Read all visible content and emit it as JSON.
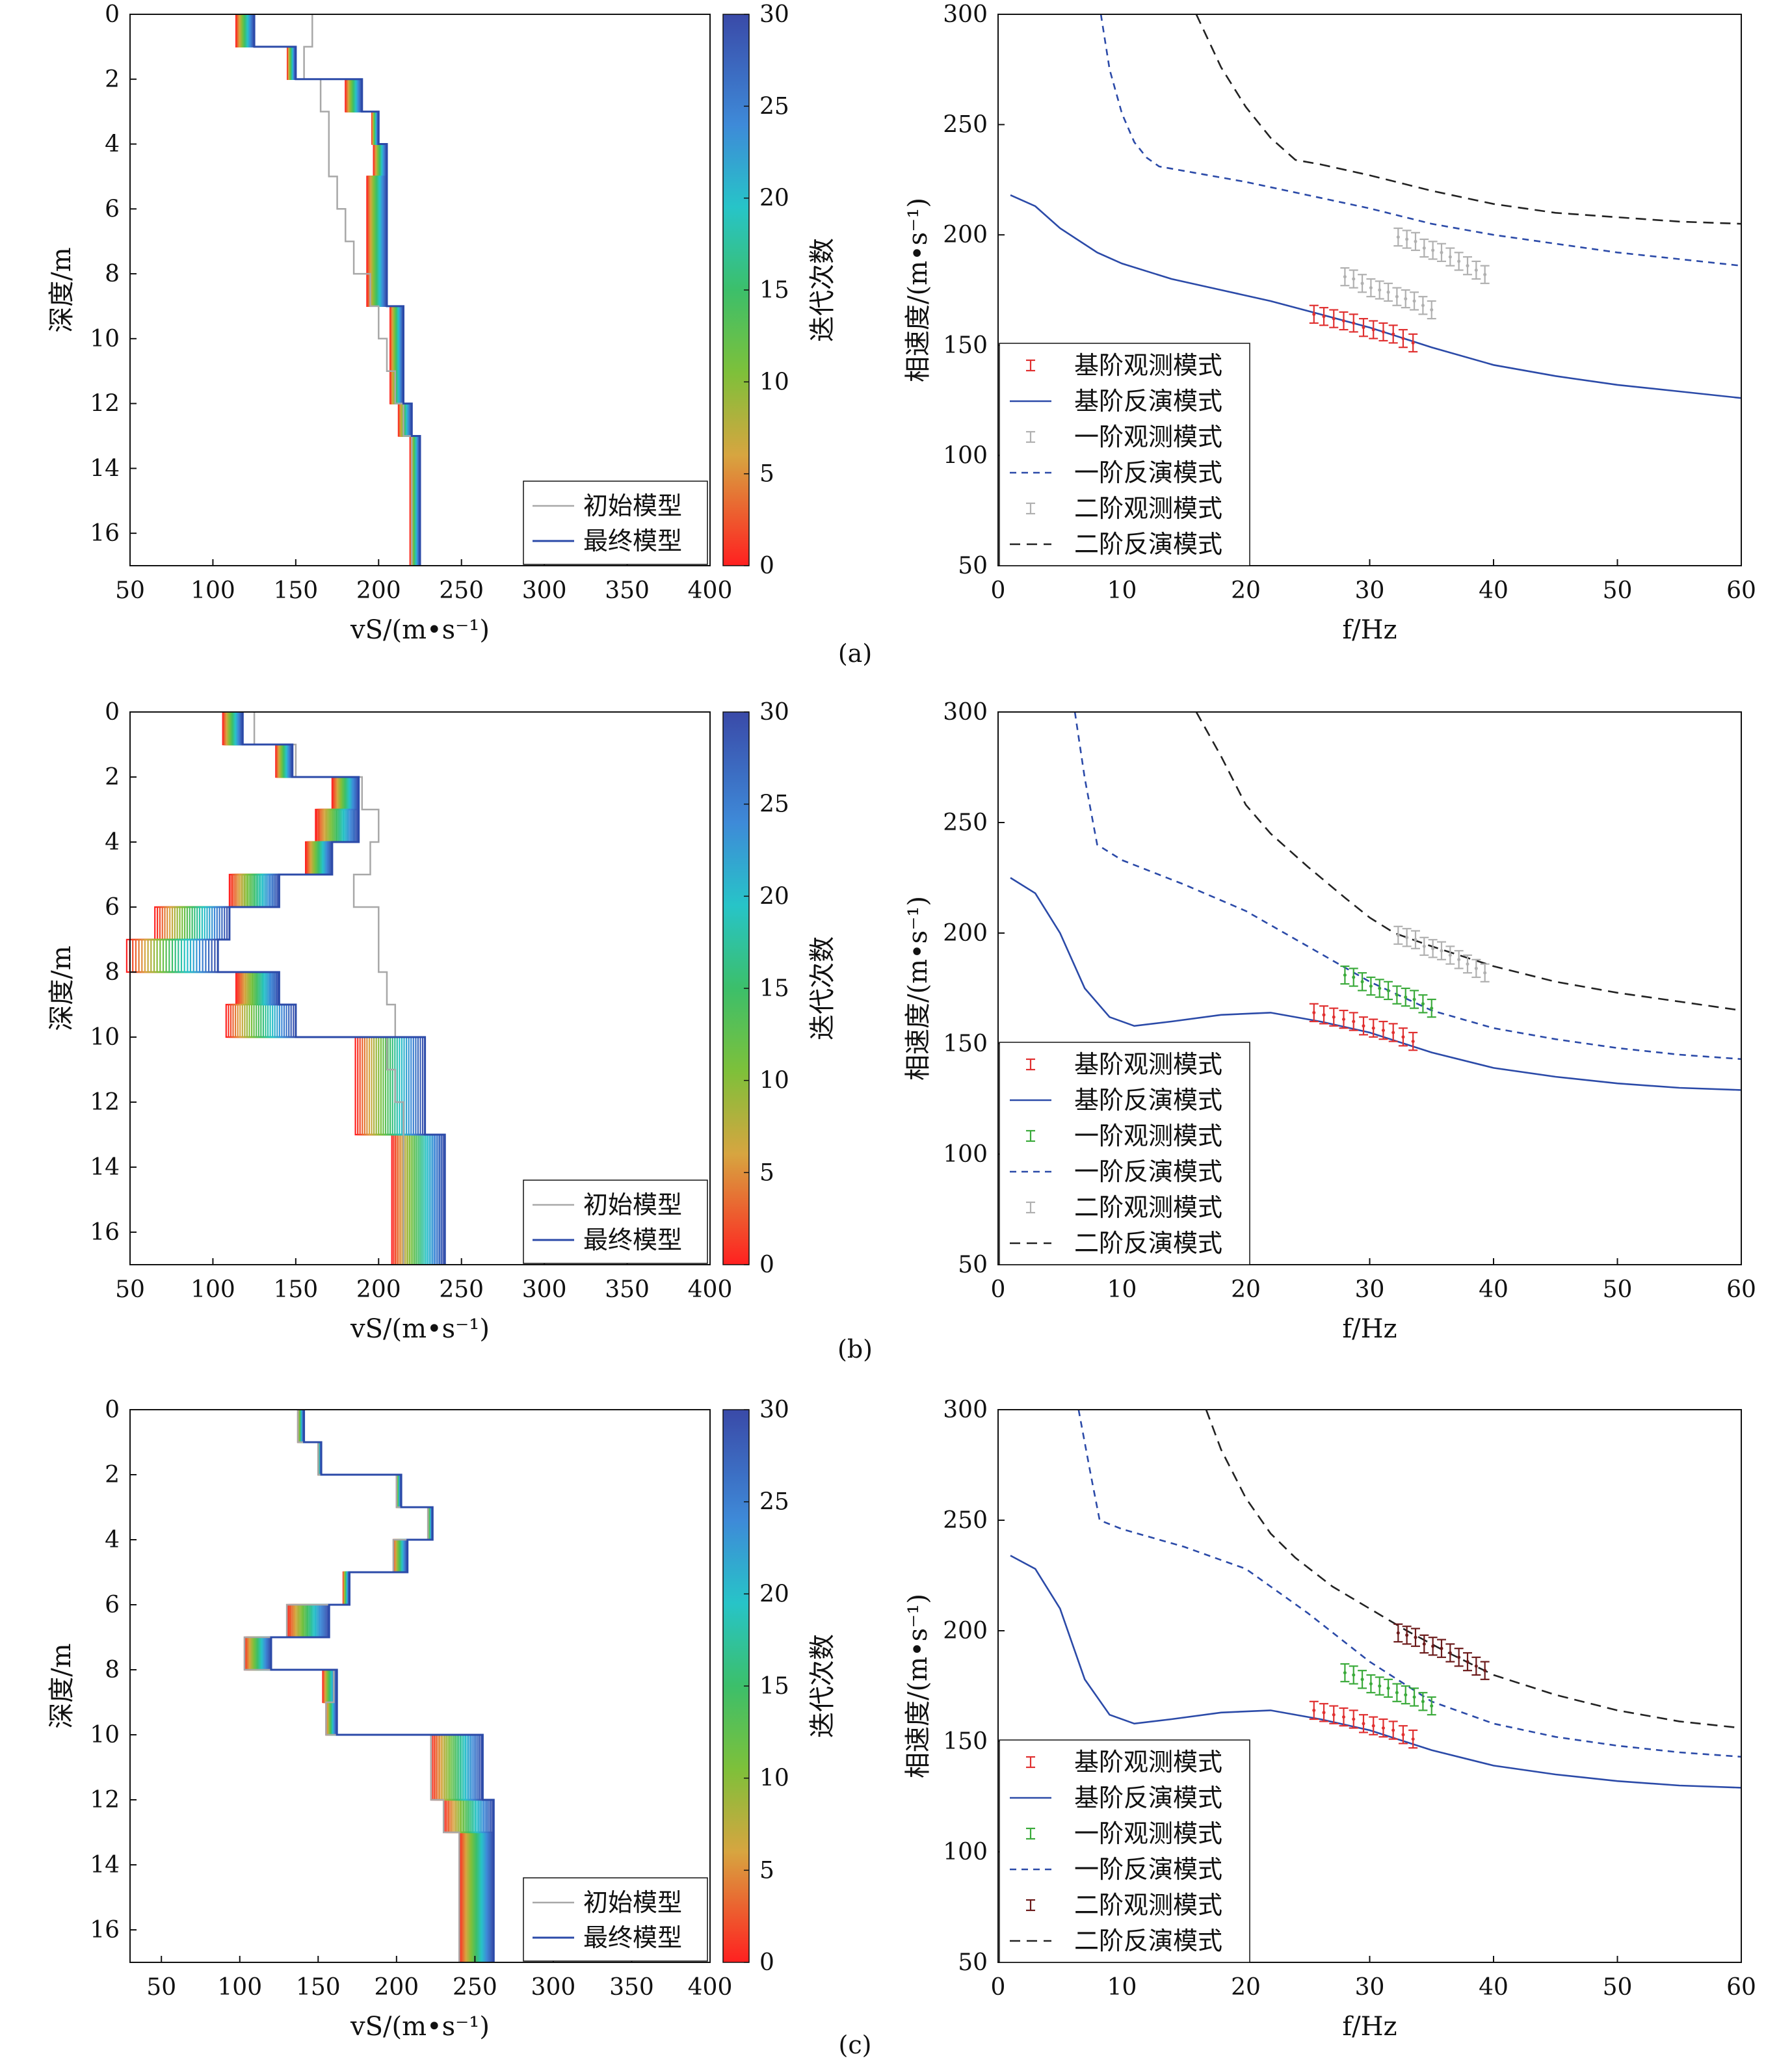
{
  "colorbar": {
    "label": "迭代次数",
    "ticks": [
      "0",
      "5",
      "10",
      "15",
      "20",
      "25",
      "30"
    ],
    "max": 30
  },
  "legend_left": [
    "初始模型",
    "最终模型"
  ],
  "legend_right": {
    "a": [
      "基阶观测模式",
      "基阶反演模式",
      "一阶观测模式",
      "一阶反演模式",
      "二阶观测模式",
      "二阶反演模式"
    ],
    "b": [
      "基阶观测模式",
      "基阶反演模式",
      "一阶观测模式",
      "一阶反演模式",
      "二阶观测模式",
      "二阶反演模式"
    ],
    "c": [
      "基阶观测模式",
      "基阶反演模式",
      "一阶观测模式",
      "一阶反演模式",
      "二阶观测模式",
      "二阶反演模式"
    ]
  },
  "axes": {
    "left_xlabel": "vS/(m•s⁻¹)",
    "left_ylabel": "深度/m",
    "right_xlabel": "f/Hz",
    "right_ylabel": "相速度/(m•s⁻¹)"
  },
  "captions": [
    "(a)",
    "(b)",
    "(c)"
  ],
  "colors": {
    "fundamental_obs": "#e03030",
    "first_obs_a": "#b0b0b0",
    "second_obs_a": "#b0b0b0",
    "first_obs_bc": "#3aaa3a",
    "second_obs_b": "#b0b0b0",
    "second_obs_c": "#6b1a1a",
    "inv_line": "#2b4aa8",
    "second_inv": "#222222",
    "initial": "#a8a8a8"
  },
  "chart_data": [
    {
      "type": "line",
      "panel": "a-left",
      "x_label": "vS/(m•s⁻¹)",
      "y_label": "深度/m",
      "xlim": [
        50,
        400
      ],
      "ylim": [
        17,
        0
      ],
      "xticks": [
        50,
        100,
        150,
        200,
        250,
        300,
        350,
        400
      ],
      "yticks": [
        0,
        2,
        4,
        6,
        8,
        10,
        12,
        14,
        16
      ],
      "layer_bounds": [
        0,
        1,
        2,
        3,
        4,
        5,
        6,
        7,
        8,
        9,
        10,
        11,
        12,
        13,
        17
      ],
      "series": [
        {
          "name": "初始模型",
          "values": [
            160,
            155,
            165,
            170,
            170,
            175,
            180,
            185,
            195,
            200,
            205,
            210,
            215,
            220
          ]
        },
        {
          "name": "最终模型",
          "values": [
            125,
            150,
            190,
            200,
            205,
            205,
            205,
            205,
            205,
            215,
            215,
            215,
            220,
            225
          ]
        }
      ],
      "iter_width": [
        11,
        5,
        10,
        4,
        8,
        12,
        12,
        12,
        12,
        8,
        8,
        8,
        8,
        6
      ]
    },
    {
      "type": "line",
      "panel": "a-right",
      "x_label": "f/Hz",
      "y_label": "相速度/(m•s⁻¹)",
      "xlim": [
        0,
        60
      ],
      "ylim": [
        50,
        300
      ],
      "xticks": [
        0,
        10,
        20,
        30,
        40,
        50,
        60
      ],
      "yticks": [
        50,
        100,
        150,
        200,
        250,
        300
      ],
      "series": [
        {
          "name": "基阶观测模式",
          "x": [
            25.5,
            26.3,
            27.1,
            27.9,
            28.7,
            29.5,
            30.3,
            31.1,
            31.9,
            32.7,
            33.5
          ],
          "values": [
            164,
            163,
            162,
            161,
            160,
            158,
            157,
            156,
            155,
            153,
            151
          ]
        },
        {
          "name": "基阶反演模式",
          "x": [
            1,
            3,
            5,
            8,
            10,
            14,
            18,
            22,
            26,
            30,
            35,
            40,
            45,
            50,
            55,
            60
          ],
          "values": [
            218,
            213,
            203,
            192,
            187,
            180,
            175,
            170,
            164,
            158,
            149,
            141,
            136,
            132,
            129,
            126
          ]
        },
        {
          "name": "一阶观测模式",
          "x": [
            28,
            28.7,
            29.4,
            30.1,
            30.8,
            31.5,
            32.2,
            32.9,
            33.6,
            34.3,
            35
          ],
          "values": [
            181,
            180,
            178,
            176,
            175,
            174,
            172,
            171,
            170,
            168,
            166
          ]
        },
        {
          "name": "一阶反演模式",
          "x": [
            8.3,
            9,
            10,
            11,
            12,
            13,
            15,
            20,
            25,
            30,
            35,
            40,
            45,
            50,
            55,
            60
          ],
          "values": [
            300,
            275,
            255,
            242,
            235,
            231,
            229,
            224,
            218,
            212,
            205,
            200,
            196,
            192,
            189,
            186
          ]
        },
        {
          "name": "二阶观测模式",
          "x": [
            32.3,
            33,
            33.7,
            34.4,
            35.1,
            35.8,
            36.5,
            37.2,
            37.9,
            38.6,
            39.3
          ],
          "values": [
            199,
            198,
            197,
            194,
            193,
            192,
            190,
            188,
            186,
            184,
            182
          ]
        },
        {
          "name": "二阶反演模式",
          "x": [
            16,
            18,
            20,
            22,
            24,
            26,
            30,
            35,
            40,
            45,
            50,
            55,
            60
          ],
          "values": [
            300,
            276,
            258,
            244,
            234,
            232,
            227,
            220,
            214,
            210,
            208,
            206,
            205
          ]
        }
      ]
    },
    {
      "type": "line",
      "panel": "b-left",
      "x_label": "vS/(m•s⁻¹)",
      "y_label": "深度/m",
      "xlim": [
        50,
        400
      ],
      "ylim": [
        17,
        0
      ],
      "xticks": [
        50,
        100,
        150,
        200,
        250,
        300,
        350,
        400
      ],
      "yticks": [
        0,
        2,
        4,
        6,
        8,
        10,
        12,
        14,
        16
      ],
      "layer_bounds": [
        0,
        1,
        2,
        3,
        4,
        5,
        6,
        7,
        8,
        9,
        10,
        11,
        12,
        13,
        17
      ],
      "series": [
        {
          "name": "初始模型",
          "values": [
            125,
            150,
            190,
            200,
            195,
            185,
            200,
            200,
            205,
            210,
            205,
            210,
            215,
            215
          ]
        },
        {
          "name": "最终模型",
          "values": [
            118,
            148,
            188,
            188,
            172,
            140,
            110,
            103,
            140,
            150,
            228,
            228,
            228,
            240
          ]
        }
      ],
      "iter_width": [
        12,
        10,
        16,
        26,
        16,
        30,
        45,
        55,
        26,
        42,
        42,
        42,
        42,
        32
      ]
    },
    {
      "type": "line",
      "panel": "b-right",
      "x_label": "f/Hz",
      "y_label": "相速度/(m•s⁻¹)",
      "xlim": [
        0,
        60
      ],
      "ylim": [
        50,
        300
      ],
      "xticks": [
        0,
        10,
        20,
        30,
        40,
        50,
        60
      ],
      "yticks": [
        50,
        100,
        150,
        200,
        250,
        300
      ],
      "series": [
        {
          "name": "基阶观测模式",
          "x": [
            25.5,
            26.3,
            27.1,
            27.9,
            28.7,
            29.5,
            30.3,
            31.1,
            31.9,
            32.7,
            33.5
          ],
          "values": [
            164,
            163,
            162,
            161,
            160,
            158,
            157,
            156,
            155,
            153,
            151
          ]
        },
        {
          "name": "基阶反演模式",
          "x": [
            1,
            3,
            5,
            7,
            9,
            11,
            14,
            18,
            22,
            26,
            30,
            35,
            40,
            45,
            50,
            55,
            60
          ],
          "values": [
            225,
            218,
            200,
            175,
            162,
            158,
            160,
            163,
            164,
            160,
            155,
            146,
            139,
            135,
            132,
            130,
            129
          ]
        },
        {
          "name": "一阶观测模式",
          "x": [
            28,
            28.7,
            29.4,
            30.1,
            30.8,
            31.5,
            32.2,
            32.9,
            33.6,
            34.3,
            35
          ],
          "values": [
            181,
            180,
            178,
            176,
            175,
            174,
            172,
            171,
            170,
            168,
            166
          ]
        },
        {
          "name": "一阶反演模式",
          "x": [
            6.2,
            7,
            8,
            10,
            15,
            20,
            25,
            30,
            35,
            40,
            45,
            50,
            55,
            60
          ],
          "values": [
            300,
            270,
            240,
            233,
            222,
            210,
            194,
            178,
            165,
            157,
            152,
            148,
            145,
            143
          ]
        },
        {
          "name": "二阶观测模式",
          "x": [
            32.3,
            33,
            33.7,
            34.4,
            35.1,
            35.8,
            36.5,
            37.2,
            37.9,
            38.6,
            39.3
          ],
          "values": [
            199,
            198,
            197,
            194,
            193,
            192,
            190,
            188,
            186,
            184,
            182
          ]
        },
        {
          "name": "二阶反演模式",
          "x": [
            16,
            18,
            20,
            22,
            25,
            28,
            30,
            32,
            35,
            40,
            45,
            50,
            55,
            60
          ],
          "values": [
            300,
            280,
            258,
            245,
            230,
            216,
            207,
            200,
            194,
            185,
            178,
            173,
            169,
            165
          ]
        }
      ]
    },
    {
      "type": "line",
      "panel": "c-left",
      "x_label": "vS/(m•s⁻¹)",
      "y_label": "深度/m",
      "xlim": [
        30,
        400
      ],
      "ylim": [
        17,
        0
      ],
      "xticks": [
        50,
        100,
        150,
        200,
        250,
        300,
        350,
        400
      ],
      "yticks": [
        0,
        2,
        4,
        6,
        8,
        10,
        12,
        14,
        16
      ],
      "layer_bounds": [
        0,
        1,
        2,
        3,
        4,
        5,
        6,
        7,
        8,
        9,
        10,
        11,
        12,
        13,
        17
      ],
      "series": [
        {
          "name": "初始模型",
          "values": [
            137,
            150,
            200,
            220,
            198,
            170,
            130,
            103,
            160,
            155,
            222,
            222,
            230,
            240
          ]
        },
        {
          "name": "最终模型",
          "values": [
            141,
            152,
            203,
            223,
            207,
            170,
            157,
            120,
            162,
            162,
            255,
            255,
            262,
            262
          ]
        }
      ],
      "iter_width": [
        4,
        2,
        3,
        3,
        9,
        4,
        27,
        17,
        9,
        7,
        33,
        33,
        32,
        22
      ]
    },
    {
      "type": "line",
      "panel": "c-right",
      "x_label": "f/Hz",
      "y_label": "相速度/(m•s⁻¹)",
      "xlim": [
        0,
        60
      ],
      "ylim": [
        50,
        300
      ],
      "xticks": [
        0,
        10,
        20,
        30,
        40,
        50,
        60
      ],
      "yticks": [
        50,
        100,
        150,
        200,
        250,
        300
      ],
      "series": [
        {
          "name": "基阶观测模式",
          "x": [
            25.5,
            26.3,
            27.1,
            27.9,
            28.7,
            29.5,
            30.3,
            31.1,
            31.9,
            32.7,
            33.5
          ],
          "values": [
            164,
            163,
            162,
            161,
            160,
            158,
            157,
            156,
            155,
            153,
            151
          ]
        },
        {
          "name": "基阶反演模式",
          "x": [
            1,
            3,
            5,
            7,
            9,
            11,
            14,
            18,
            22,
            26,
            30,
            35,
            40,
            45,
            50,
            55,
            60
          ],
          "values": [
            234,
            228,
            210,
            178,
            162,
            158,
            160,
            163,
            164,
            160,
            155,
            146,
            139,
            135,
            132,
            130,
            129
          ]
        },
        {
          "name": "一阶观测模式",
          "x": [
            28,
            28.7,
            29.4,
            30.1,
            30.8,
            31.5,
            32.2,
            32.9,
            33.6,
            34.3,
            35
          ],
          "values": [
            181,
            180,
            178,
            176,
            175,
            174,
            172,
            171,
            170,
            168,
            166
          ]
        },
        {
          "name": "一阶反演模式",
          "x": [
            6.5,
            7.5,
            8.2,
            10,
            15,
            20,
            25,
            30,
            35,
            40,
            45,
            50,
            55,
            60
          ],
          "values": [
            300,
            270,
            250,
            246,
            238,
            228,
            208,
            186,
            168,
            158,
            152,
            148,
            145,
            143
          ]
        },
        {
          "name": "二阶观测模式",
          "x": [
            32.3,
            33,
            33.7,
            34.4,
            35.1,
            35.8,
            36.5,
            37.2,
            37.9,
            38.6,
            39.3
          ],
          "values": [
            199,
            198,
            197,
            194,
            193,
            192,
            190,
            188,
            186,
            184,
            182
          ]
        },
        {
          "name": "二阶反演模式",
          "x": [
            16.8,
            18,
            20,
            22,
            24,
            27,
            30,
            33,
            36,
            40,
            45,
            50,
            55,
            60
          ],
          "values": [
            300,
            282,
            260,
            244,
            233,
            220,
            210,
            200,
            191,
            180,
            171,
            164,
            159,
            156
          ]
        }
      ]
    }
  ]
}
